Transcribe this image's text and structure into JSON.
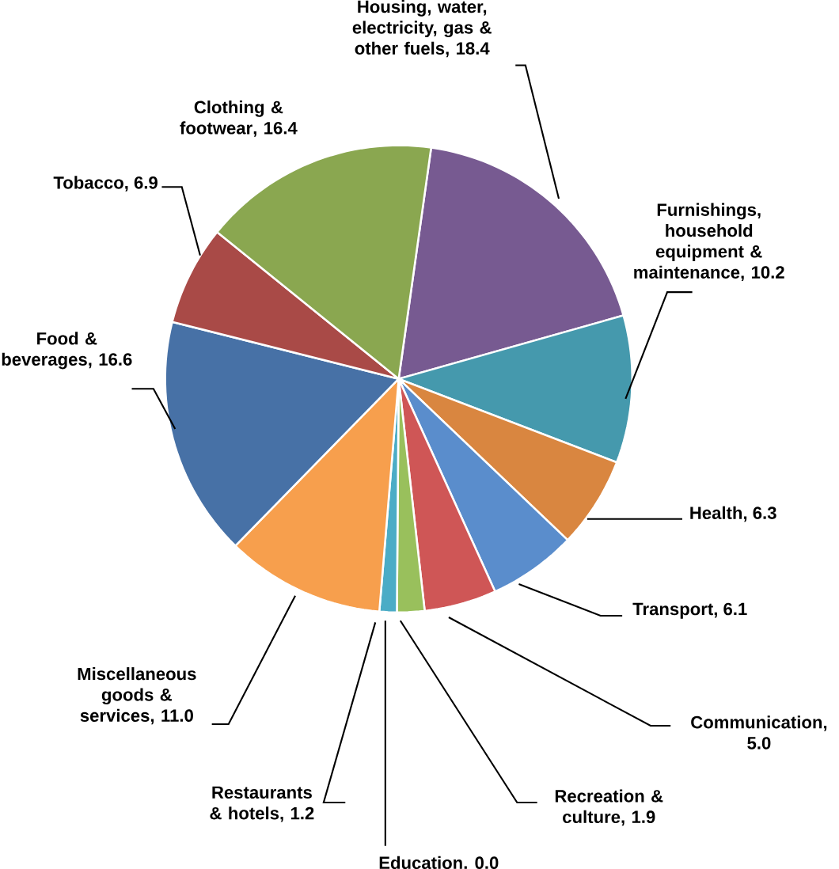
{
  "chart_data": {
    "type": "pie",
    "categories": [
      "Housing, water, electricity, gas & other fuels",
      "Furnishings, household equipment & maintenance",
      "Health",
      "Transport",
      "Communication",
      "Recreation & culture",
      "Education",
      "Restaurants & hotels",
      "Miscellaneous goods & services",
      "Food & beverages",
      "Tobacco",
      "Clothing & footwear"
    ],
    "values": [
      18.4,
      10.2,
      6.3,
      6.1,
      5.0,
      1.9,
      0.0,
      1.2,
      11.0,
      16.6,
      6.9,
      16.4
    ],
    "value_labels": [
      ", 18.4",
      ", 10.2",
      ", 6.3",
      ", 6.1",
      ", 5.0",
      ", 1.9",
      ". 0.0",
      ", 1.2",
      ", 11.0",
      ", 16.6",
      ", 6.9",
      ", 16.4"
    ],
    "colors": [
      "#775a91",
      "#4599ad",
      "#d98640",
      "#5a8dcc",
      "#cf5656",
      "#99c05c",
      "#8064a2",
      "#4bacc6",
      "#f79f4d",
      "#4771a6",
      "#a94a47",
      "#8aa750"
    ]
  }
}
